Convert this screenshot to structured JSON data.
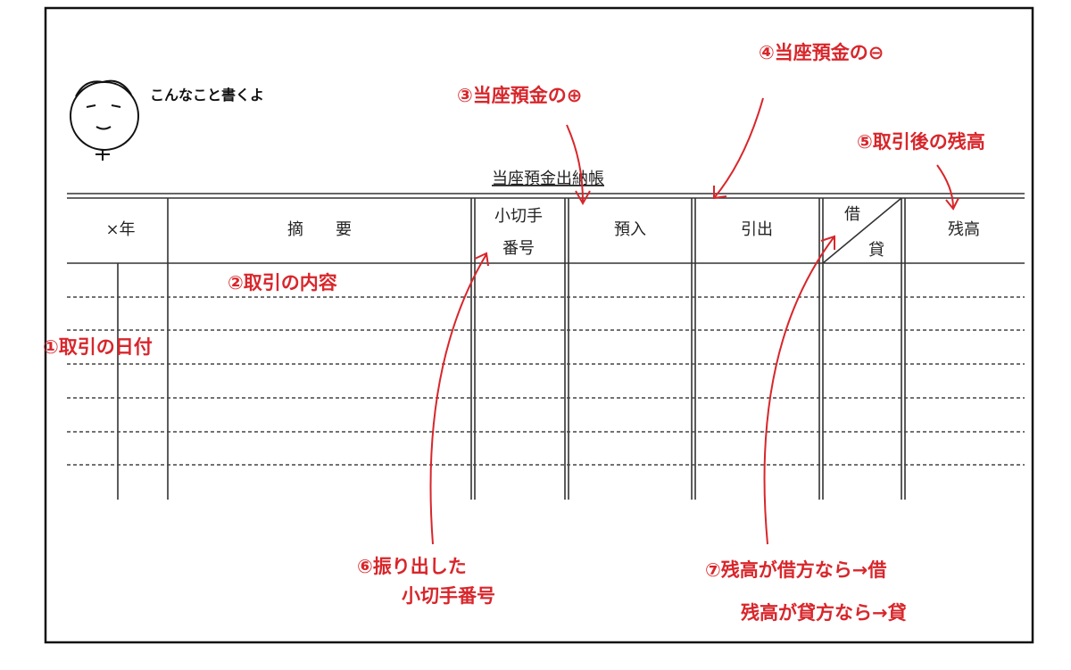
{
  "header": {
    "note": "こんなこと書くよ"
  },
  "table": {
    "title": "当座預金出納帳",
    "headers": {
      "date": "×年",
      "summary": "摘　　要",
      "check": [
        "小切手",
        "番号"
      ],
      "deposit": "預入",
      "withdrawal": "引出",
      "debit": "借",
      "credit": "貸",
      "balance": "残高"
    }
  },
  "annotations": [
    {
      "lines": [
        "①取引の日付"
      ]
    },
    {
      "lines": [
        "②取引の内容"
      ]
    },
    {
      "lines": [
        "③当座預金の⊕"
      ]
    },
    {
      "lines": [
        "④当座預金の⊖"
      ]
    },
    {
      "lines": [
        "⑤取引後の残高"
      ]
    },
    {
      "lines": [
        "⑥振り出した",
        "小切手番号"
      ]
    },
    {
      "lines": [
        "⑦残高が借方なら→借",
        "残高が貸方なら→貸"
      ]
    }
  ]
}
